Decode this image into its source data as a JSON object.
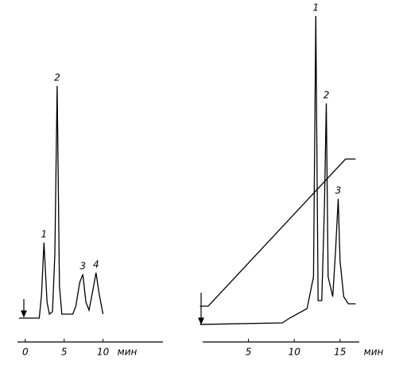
{
  "chart_data": [
    {
      "type": "line",
      "xlabel": "мин",
      "xlim": [
        -1,
        17.7
      ],
      "xticks": [
        0,
        5,
        10
      ],
      "ylim": [
        0,
        300
      ],
      "series": [
        {
          "name": null,
          "color": "#000000",
          "x": [
            -0.8,
            1.8,
            2.1,
            2.4,
            2.8,
            3.1,
            3.5,
            3.8,
            4.1,
            4.4,
            4.7,
            6.1,
            6.5,
            7.0,
            7.4,
            7.8,
            8.2,
            8.6,
            9.1,
            9.5,
            10.0
          ],
          "values": [
            0,
            0,
            30,
            95,
            20,
            5,
            8,
            80,
            292,
            40,
            5,
            5,
            15,
            45,
            55,
            20,
            10,
            30,
            57,
            30,
            5
          ]
        }
      ],
      "peaks": [
        {
          "label": "1",
          "x": 2.4
        },
        {
          "label": "2",
          "x": 4.1
        },
        {
          "label": "3",
          "x": 7.4
        },
        {
          "label": "4",
          "x": 9.1
        }
      ]
    },
    {
      "type": "line",
      "xlabel": "мин",
      "xlim": [
        0,
        17.1
      ],
      "xticks": [
        5,
        10,
        15
      ],
      "ylim": [
        0,
        400
      ],
      "series": [
        {
          "name": null,
          "color": "#000000",
          "x": [
            -0.3,
            8.7,
            9.5,
            11.4,
            12.1,
            12.35,
            12.6,
            13.0,
            13.3,
            13.5,
            13.7,
            14.2,
            14.5,
            14.8,
            15.0,
            15.4,
            15.9,
            16.7
          ],
          "values": [
            0,
            2,
            8,
            20,
            60,
            388,
            30,
            30,
            150,
            278,
            60,
            35,
            90,
            158,
            80,
            35,
            26,
            26
          ]
        },
        {
          "name": null,
          "color": "#000000",
          "x": [
            -0.3,
            0.6,
            15.6,
            16.7
          ],
          "values": [
            23,
            23,
            208,
            208
          ]
        }
      ],
      "peaks": [
        {
          "label": "1",
          "x": 12.35
        },
        {
          "label": "2",
          "x": 13.5
        },
        {
          "label": "3",
          "x": 14.8
        }
      ]
    }
  ]
}
